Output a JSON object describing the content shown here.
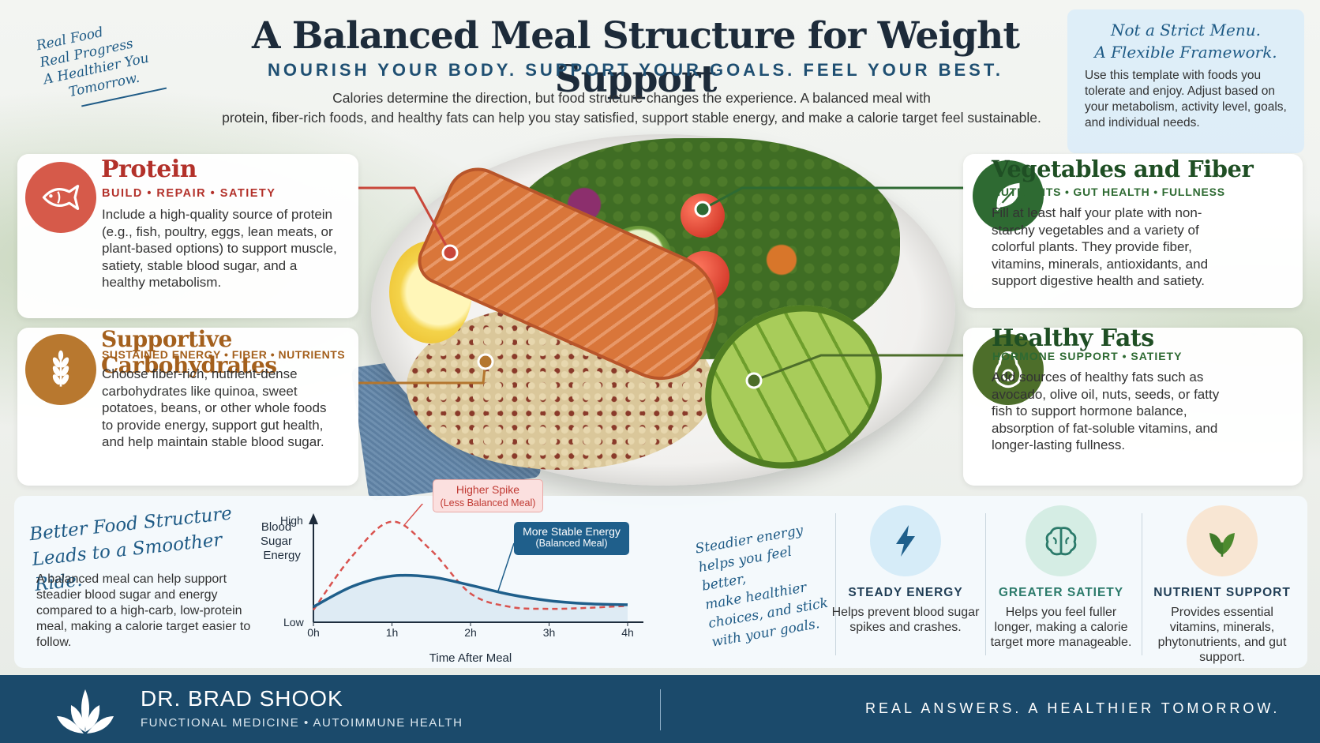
{
  "tagline": [
    "Real Food",
    "Real Progress",
    "A Healthier You",
    "Tomorrow."
  ],
  "header": {
    "title": "A Balanced Meal Structure for Weight Support",
    "subtitle": "NOURISH YOUR BODY. SUPPORT YOUR GOALS. FEEL YOUR BEST.",
    "intro_line1": "Calories determine the direction, but food structure changes the experience. A balanced meal with",
    "intro_line2": "protein, fiber-rich foods, and healthy fats can help you stay satisfied, support stable energy, and make a calorie target feel sustainable."
  },
  "note": {
    "heading_line1": "Not a Strict Menu.",
    "heading_line2": "A Flexible Framework.",
    "body": "Use this template with foods you tolerate and enjoy. Adjust based on your metabolism, activity level, goals, and individual needs."
  },
  "cards": {
    "protein": {
      "title": "Protein",
      "subtitle": "BUILD • REPAIR • SATIETY",
      "body": "Include a high-quality source of protein (e.g., fish, poultry, eggs, lean meats, or plant-based options) to support muscle, satiety, stable blood sugar, and a healthy metabolism.",
      "color": "#c9473a",
      "icon": "fish-icon"
    },
    "carbs": {
      "title": "Supportive Carbohydrates",
      "subtitle": "SUSTAINED ENERGY • FIBER • NUTRIENTS",
      "body": "Choose fiber-rich, nutrient-dense carbohydrates like quinoa, sweet potatoes, beans, or other whole foods to provide energy, support gut health, and help maintain stable blood sugar.",
      "color": "#b4762e",
      "icon": "wheat-icon"
    },
    "vegetables": {
      "title": "Vegetables and Fiber",
      "subtitle": "NUTRIENTS • GUT HEALTH • FULLNESS",
      "body": "Fill at least half your plate with non-starchy vegetables and a variety of colorful plants. They provide fiber, vitamins, minerals, antioxidants, and support digestive health and satiety.",
      "color": "#2e6a32",
      "icon": "leaf-icon"
    },
    "fats": {
      "title": "Healthy Fats",
      "subtitle": "HORMONE SUPPORT • SATIETY",
      "body": "Add sources of healthy fats such as avocado, olive oil, nuts, seeds, or fatty fish to support hormone balance, absorption of fat-soluble vitamins, and longer-lasting fullness.",
      "color": "#4d6e2a",
      "icon": "avocado-icon"
    }
  },
  "bottom": {
    "heading_line1": "Better Food Structure",
    "heading_line2": "Leads to a Smoother Ride.",
    "body": "A balanced meal can help support steadier blood sugar and energy compared to a high-carb, low-protein meal, making a calorie target easier to follow.",
    "steadier": [
      "Steadier energy",
      "helps you feel better,",
      "make healthier",
      "choices, and stick",
      "with your goals."
    ]
  },
  "chart_data": {
    "type": "line",
    "x": [
      0,
      0.5,
      1,
      1.5,
      2,
      2.5,
      3,
      3.5,
      4
    ],
    "x_ticks": [
      "0h",
      "1h",
      "2h",
      "3h",
      "4h"
    ],
    "xlabel": "Time After Meal",
    "ylabel": "Blood Sugar & Energy",
    "y_ticks": [
      "Low",
      "High"
    ],
    "ylim": [
      0,
      1
    ],
    "series": [
      {
        "name": "Higher Spike",
        "note": "(Less Balanced Meal)",
        "style": "dashed",
        "color": "#d9534f",
        "values": [
          0.12,
          0.65,
          0.98,
          0.7,
          0.28,
          0.15,
          0.13,
          0.14,
          0.16
        ]
      },
      {
        "name": "More Stable Energy",
        "note": "(Balanced Meal)",
        "style": "solid",
        "color": "#1f5f8b",
        "values": [
          0.15,
          0.35,
          0.45,
          0.44,
          0.36,
          0.27,
          0.21,
          0.18,
          0.17
        ]
      }
    ]
  },
  "benefits": [
    {
      "title": "STEADY ENERGY",
      "body": "Helps prevent blood sugar spikes and crashes.",
      "icon": "lightning-icon",
      "color": "#d6ecf8"
    },
    {
      "title": "GREATER SATIETY",
      "body": "Helps you feel fuller longer, making a calorie target more manageable.",
      "icon": "brain-icon",
      "color": "#d5ede4"
    },
    {
      "title": "NUTRIENT SUPPORT",
      "body": "Provides essential vitamins, minerals, phytonutrients, and gut support.",
      "icon": "leaves-icon",
      "color": "#f8e6d3"
    }
  ],
  "footer": {
    "name": "DR. BRAD SHOOK",
    "sub": "FUNCTIONAL MEDICINE  •  AUTOIMMUNE HEALTH",
    "motto": "REAL ANSWERS. A HEALTHIER TOMORROW."
  }
}
